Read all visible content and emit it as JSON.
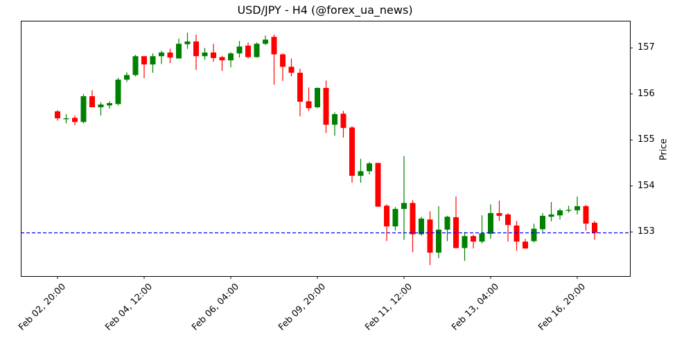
{
  "chart_data": {
    "type": "candlestick",
    "title": "USD/JPY - H4 (@forex_ua_news)",
    "xlabel": "",
    "ylabel": "Price",
    "ylim": [
      152.04,
      157.59
    ],
    "yticks": [
      153,
      154,
      155,
      156,
      157
    ],
    "xtick_labels": [
      {
        "index": 0,
        "label": "Feb 02, 20:00"
      },
      {
        "index": 10,
        "label": "Feb 04, 12:00"
      },
      {
        "index": 20,
        "label": "Feb 06, 04:00"
      },
      {
        "index": 30,
        "label": "Feb 09, 20:00"
      },
      {
        "index": 40,
        "label": "Feb 11, 12:00"
      },
      {
        "index": 50,
        "label": "Feb 13, 04:00"
      },
      {
        "index": 60,
        "label": "Feb 16, 20:00"
      }
    ],
    "reference_line": {
      "value": 152.98,
      "style": "dashed",
      "color": "#0000ff"
    },
    "colors": {
      "up": "#008000",
      "down": "#ff0000"
    },
    "grid": false,
    "candles": [
      {
        "o": 155.62,
        "h": 155.65,
        "l": 155.42,
        "c": 155.47
      },
      {
        "o": 155.45,
        "h": 155.56,
        "l": 155.36,
        "c": 155.47
      },
      {
        "o": 155.48,
        "h": 155.53,
        "l": 155.32,
        "c": 155.39
      },
      {
        "o": 155.39,
        "h": 156.0,
        "l": 155.36,
        "c": 155.95
      },
      {
        "o": 155.95,
        "h": 156.08,
        "l": 155.71,
        "c": 155.71
      },
      {
        "o": 155.71,
        "h": 155.82,
        "l": 155.53,
        "c": 155.77
      },
      {
        "o": 155.75,
        "h": 155.84,
        "l": 155.68,
        "c": 155.8
      },
      {
        "o": 155.78,
        "h": 156.35,
        "l": 155.75,
        "c": 156.31
      },
      {
        "o": 156.31,
        "h": 156.47,
        "l": 156.26,
        "c": 156.41
      },
      {
        "o": 156.41,
        "h": 156.85,
        "l": 156.38,
        "c": 156.82
      },
      {
        "o": 156.82,
        "h": 156.82,
        "l": 156.34,
        "c": 156.64
      },
      {
        "o": 156.64,
        "h": 156.88,
        "l": 156.46,
        "c": 156.82
      },
      {
        "o": 156.82,
        "h": 156.94,
        "l": 156.65,
        "c": 156.9
      },
      {
        "o": 156.9,
        "h": 156.98,
        "l": 156.67,
        "c": 156.79
      },
      {
        "o": 156.77,
        "h": 157.2,
        "l": 156.77,
        "c": 157.09
      },
      {
        "o": 157.08,
        "h": 157.33,
        "l": 156.98,
        "c": 157.14
      },
      {
        "o": 157.14,
        "h": 157.29,
        "l": 156.52,
        "c": 156.82
      },
      {
        "o": 156.82,
        "h": 157.0,
        "l": 156.74,
        "c": 156.9
      },
      {
        "o": 156.9,
        "h": 157.09,
        "l": 156.7,
        "c": 156.78
      },
      {
        "o": 156.8,
        "h": 156.83,
        "l": 156.5,
        "c": 156.73
      },
      {
        "o": 156.73,
        "h": 156.91,
        "l": 156.58,
        "c": 156.88
      },
      {
        "o": 156.88,
        "h": 157.15,
        "l": 156.79,
        "c": 157.03
      },
      {
        "o": 157.05,
        "h": 157.12,
        "l": 156.77,
        "c": 156.8
      },
      {
        "o": 156.8,
        "h": 157.12,
        "l": 156.79,
        "c": 157.09
      },
      {
        "o": 157.09,
        "h": 157.27,
        "l": 157.06,
        "c": 157.18
      },
      {
        "o": 157.24,
        "h": 157.29,
        "l": 156.2,
        "c": 156.86
      },
      {
        "o": 156.86,
        "h": 156.88,
        "l": 156.28,
        "c": 156.59
      },
      {
        "o": 156.59,
        "h": 156.77,
        "l": 156.38,
        "c": 156.46
      },
      {
        "o": 156.46,
        "h": 156.55,
        "l": 155.51,
        "c": 155.83
      },
      {
        "o": 155.84,
        "h": 156.14,
        "l": 155.63,
        "c": 155.69
      },
      {
        "o": 155.71,
        "h": 156.14,
        "l": 155.69,
        "c": 156.13
      },
      {
        "o": 156.13,
        "h": 156.29,
        "l": 155.15,
        "c": 155.33
      },
      {
        "o": 155.33,
        "h": 155.6,
        "l": 155.09,
        "c": 155.56
      },
      {
        "o": 155.57,
        "h": 155.63,
        "l": 155.05,
        "c": 155.26
      },
      {
        "o": 155.27,
        "h": 155.3,
        "l": 154.07,
        "c": 154.22
      },
      {
        "o": 154.22,
        "h": 154.59,
        "l": 154.07,
        "c": 154.32
      },
      {
        "o": 154.32,
        "h": 154.52,
        "l": 154.25,
        "c": 154.49
      },
      {
        "o": 154.5,
        "h": 154.5,
        "l": 153.55,
        "c": 153.55
      },
      {
        "o": 153.57,
        "h": 153.6,
        "l": 152.8,
        "c": 153.12
      },
      {
        "o": 153.12,
        "h": 153.54,
        "l": 153.03,
        "c": 153.5
      },
      {
        "o": 153.5,
        "h": 154.65,
        "l": 152.83,
        "c": 153.63
      },
      {
        "o": 153.63,
        "h": 153.69,
        "l": 152.56,
        "c": 152.95
      },
      {
        "o": 152.95,
        "h": 153.33,
        "l": 152.92,
        "c": 153.29
      },
      {
        "o": 153.27,
        "h": 153.45,
        "l": 152.28,
        "c": 152.55
      },
      {
        "o": 152.55,
        "h": 153.56,
        "l": 152.43,
        "c": 153.05
      },
      {
        "o": 153.05,
        "h": 153.35,
        "l": 152.8,
        "c": 153.33
      },
      {
        "o": 153.32,
        "h": 153.77,
        "l": 152.64,
        "c": 152.65
      },
      {
        "o": 152.65,
        "h": 153.0,
        "l": 152.37,
        "c": 152.91
      },
      {
        "o": 152.91,
        "h": 152.94,
        "l": 152.64,
        "c": 152.79
      },
      {
        "o": 152.79,
        "h": 153.36,
        "l": 152.75,
        "c": 152.97
      },
      {
        "o": 152.96,
        "h": 153.6,
        "l": 152.85,
        "c": 153.41
      },
      {
        "o": 153.41,
        "h": 153.68,
        "l": 153.24,
        "c": 153.35
      },
      {
        "o": 153.38,
        "h": 153.41,
        "l": 152.79,
        "c": 153.15
      },
      {
        "o": 153.14,
        "h": 153.24,
        "l": 152.59,
        "c": 152.79
      },
      {
        "o": 152.79,
        "h": 152.85,
        "l": 152.64,
        "c": 152.64
      },
      {
        "o": 152.8,
        "h": 153.18,
        "l": 152.77,
        "c": 153.07
      },
      {
        "o": 153.06,
        "h": 153.41,
        "l": 153.0,
        "c": 153.35
      },
      {
        "o": 153.33,
        "h": 153.65,
        "l": 153.23,
        "c": 153.38
      },
      {
        "o": 153.36,
        "h": 153.51,
        "l": 153.27,
        "c": 153.47
      },
      {
        "o": 153.46,
        "h": 153.57,
        "l": 153.42,
        "c": 153.48
      },
      {
        "o": 153.47,
        "h": 153.77,
        "l": 153.38,
        "c": 153.56
      },
      {
        "o": 153.56,
        "h": 153.59,
        "l": 153.03,
        "c": 153.18
      },
      {
        "o": 153.2,
        "h": 153.24,
        "l": 152.83,
        "c": 152.98
      }
    ]
  }
}
